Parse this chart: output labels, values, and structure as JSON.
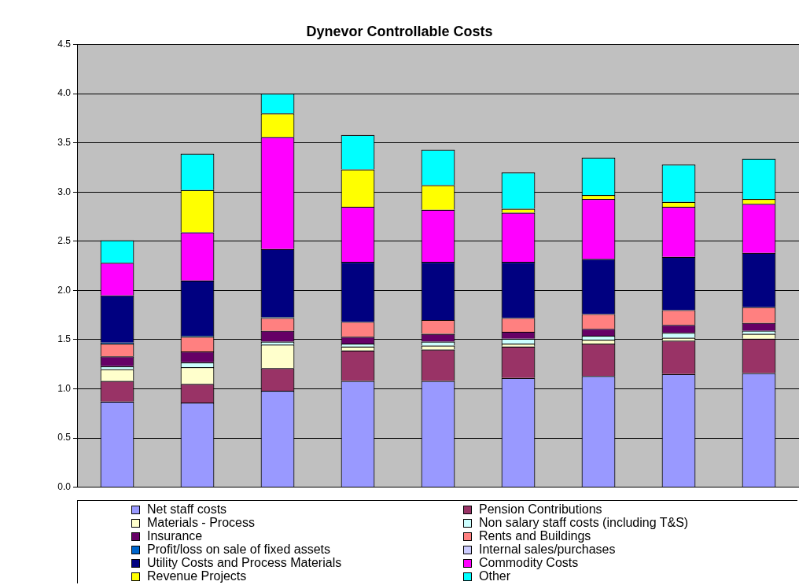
{
  "chart_data": {
    "type": "bar",
    "title": "Dynevor Controllable Costs",
    "stacked": true,
    "categories": [
      null,
      null,
      null,
      null,
      null,
      null,
      null,
      null,
      null
    ],
    "ylim": [
      0,
      4.5
    ],
    "yticks": [
      {
        "value": 0,
        "label": "0.0"
      },
      {
        "value": 0.5,
        "label": "0.5"
      },
      {
        "value": 1,
        "label": "1.0"
      },
      {
        "value": 1.5,
        "label": "1.5"
      },
      {
        "value": 2,
        "label": "2.0"
      },
      {
        "value": 2.5,
        "label": "2.5"
      },
      {
        "value": 3,
        "label": "3.0"
      },
      {
        "value": 3.5,
        "label": "3.5"
      },
      {
        "value": 4,
        "label": "4.0"
      },
      {
        "value": 4.5,
        "label": "4.5"
      }
    ],
    "grid": "y",
    "legend": "bottom",
    "series": [
      {
        "name": "Net staff costs",
        "color": "#9999ff",
        "values": [
          0.87,
          0.86,
          0.98,
          1.08,
          1.08,
          1.11,
          1.13,
          1.15,
          1.16
        ]
      },
      {
        "name": "Pension Contributions",
        "color": "#993366",
        "values": [
          0.21,
          0.19,
          0.23,
          0.31,
          0.32,
          0.32,
          0.33,
          0.34,
          0.35
        ]
      },
      {
        "name": "Materials - Process",
        "color": "#ffffcc",
        "values": [
          0.12,
          0.17,
          0.24,
          0.04,
          0.04,
          0.03,
          0.04,
          0.03,
          0.05
        ]
      },
      {
        "name": "Non salary staff costs (including T&S)",
        "color": "#ccffff",
        "values": [
          0.03,
          0.05,
          0.03,
          0.03,
          0.04,
          0.05,
          0.04,
          0.05,
          0.03
        ]
      },
      {
        "name": "Insurance",
        "color": "#660066",
        "values": [
          0.1,
          0.11,
          0.11,
          0.07,
          0.08,
          0.07,
          0.07,
          0.08,
          0.08
        ]
      },
      {
        "name": "Rents and Buildings",
        "color": "#ff8080",
        "values": [
          0.13,
          0.15,
          0.13,
          0.15,
          0.14,
          0.14,
          0.15,
          0.15,
          0.16
        ]
      },
      {
        "name": "Profit/loss on sale of fixed assets",
        "color": "#0066cc",
        "values": [
          0.01,
          0.01,
          0.01,
          0,
          0,
          0,
          0,
          0,
          0
        ]
      },
      {
        "name": "Internal sales/purchases",
        "color": "#ccccff",
        "values": [
          0,
          0,
          0,
          0,
          0,
          0,
          0,
          0,
          0
        ]
      },
      {
        "name": "Utility Costs and Process Materials",
        "color": "#000080",
        "values": [
          0.48,
          0.56,
          0.69,
          0.61,
          0.59,
          0.57,
          0.56,
          0.54,
          0.55
        ]
      },
      {
        "name": "Commodity Costs",
        "color": "#ff00ff",
        "values": [
          0.33,
          0.49,
          1.14,
          0.56,
          0.53,
          0.5,
          0.61,
          0.51,
          0.5
        ]
      },
      {
        "name": "Revenue Projects",
        "color": "#ffff00",
        "values": [
          0,
          0.43,
          0.24,
          0.38,
          0.25,
          0.04,
          0.04,
          0.05,
          0.05
        ]
      },
      {
        "name": "Other",
        "color": "#00ffff",
        "values": [
          0.23,
          0.37,
          0.2,
          0.35,
          0.36,
          0.37,
          0.38,
          0.38,
          0.41
        ]
      }
    ]
  }
}
